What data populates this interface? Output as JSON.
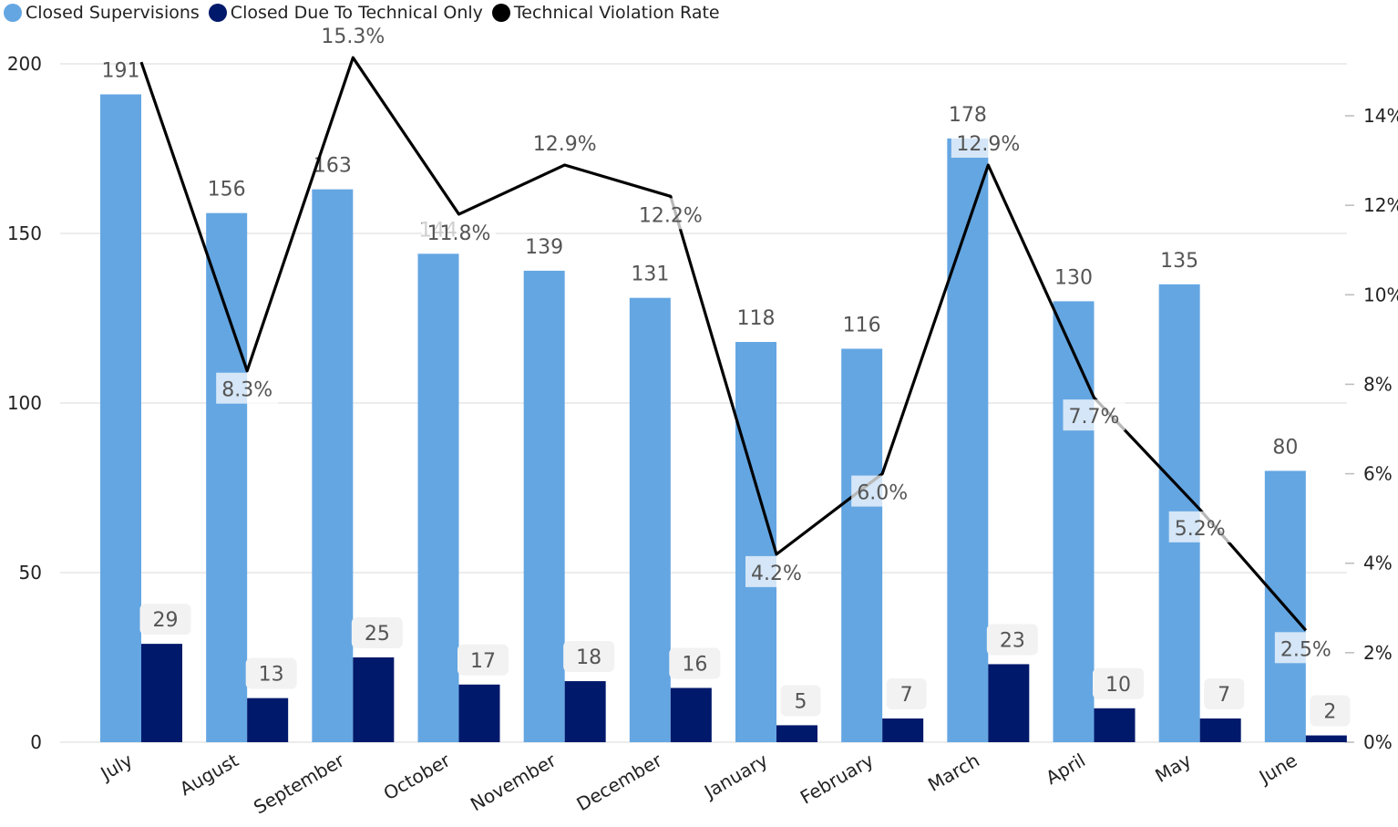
{
  "colors": {
    "closed_supervisions": "#64a6e2",
    "closed_technical": "#00196b",
    "rate": "#000000"
  },
  "chart_data": {
    "type": "bar",
    "categories": [
      "July",
      "August",
      "September",
      "October",
      "November",
      "December",
      "January",
      "February",
      "March",
      "April",
      "May",
      "June"
    ],
    "series": [
      {
        "name": "Closed Supervisions",
        "type": "bar",
        "axis": "left",
        "values": [
          191,
          156,
          163,
          144,
          139,
          131,
          118,
          116,
          178,
          130,
          135,
          80
        ]
      },
      {
        "name": "Closed Due To Technical Only",
        "type": "bar",
        "axis": "left",
        "values": [
          29,
          13,
          25,
          17,
          18,
          16,
          5,
          7,
          23,
          10,
          7,
          2
        ]
      },
      {
        "name": "Technical Violation Rate",
        "type": "line",
        "axis": "right",
        "unit": "%",
        "values": [
          15.2,
          8.3,
          15.3,
          11.8,
          12.9,
          12.2,
          4.2,
          6.0,
          12.9,
          7.7,
          5.2,
          2.5
        ]
      }
    ],
    "value_labels": {
      "closed_supervisions": [
        "191",
        "156",
        "163",
        "144",
        "139",
        "131",
        "118",
        "116",
        "178",
        "130",
        "135",
        "80"
      ],
      "closed_technical": [
        "29",
        "13",
        "25",
        "17",
        "18",
        "16",
        "5",
        "7",
        "23",
        "10",
        "7",
        "2"
      ],
      "rate": [
        "",
        "8.3%",
        "15.3%",
        "11.8%",
        "12.9%",
        "12.2%",
        "4.2%",
        "6.0%",
        "12.9%",
        "7.7%",
        "5.2%",
        "2.5%"
      ]
    },
    "y_left": {
      "range": [
        0,
        200
      ],
      "ticks": [
        "0",
        "50",
        "100",
        "150",
        "200"
      ]
    },
    "y_right": {
      "range": [
        0,
        14
      ],
      "ticks": [
        "0%",
        "2%",
        "4%",
        "6%",
        "8%",
        "10%",
        "12%",
        "14%"
      ]
    },
    "grid": true,
    "legend": "top-left"
  }
}
